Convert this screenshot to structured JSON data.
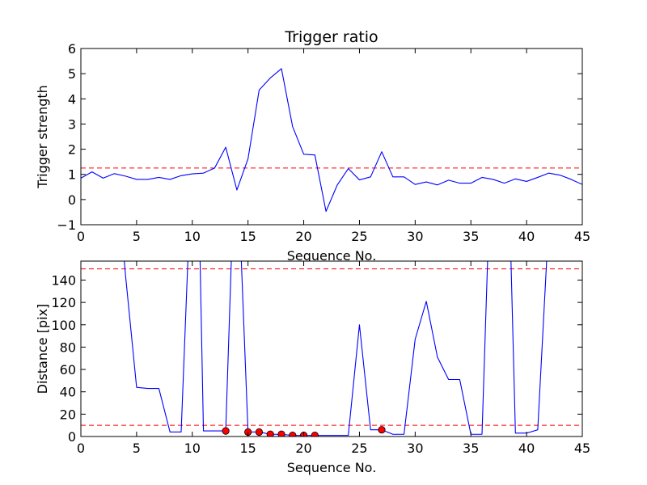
{
  "chart_data": [
    {
      "type": "line",
      "title": "Trigger ratio",
      "xlabel": "Sequence No.",
      "ylabel": "Trigger strength",
      "xlim": [
        0,
        45
      ],
      "ylim": [
        -1,
        6
      ],
      "xticks": [
        0,
        5,
        10,
        15,
        20,
        25,
        30,
        35,
        40,
        45
      ],
      "yticks": [
        -1,
        0,
        1,
        2,
        3,
        4,
        5,
        6
      ],
      "xtick_labels": [
        "0",
        "5",
        "10",
        "15",
        "20",
        "25",
        "30",
        "35",
        "40",
        "45"
      ],
      "ytick_labels": [
        "−1",
        "0",
        "1",
        "2",
        "3",
        "4",
        "5",
        "6"
      ],
      "grid": false,
      "series": [
        {
          "color": "#0000ff",
          "x": [
            0,
            1,
            2,
            3,
            4,
            5,
            6,
            7,
            8,
            9,
            10,
            11,
            12,
            13,
            14,
            15,
            16,
            17,
            18,
            19,
            20,
            21,
            22,
            23,
            24,
            25,
            26,
            27,
            28,
            29,
            30,
            31,
            32,
            33,
            34,
            35,
            36,
            37,
            38,
            39,
            40,
            41,
            42,
            43,
            44,
            45
          ],
          "values": [
            0.85,
            1.1,
            0.85,
            1.03,
            0.93,
            0.8,
            0.8,
            0.88,
            0.8,
            0.95,
            1.02,
            1.05,
            1.25,
            2.08,
            0.38,
            1.62,
            4.35,
            4.83,
            5.2,
            2.9,
            1.8,
            1.77,
            -0.47,
            0.57,
            1.23,
            0.78,
            0.9,
            1.9,
            0.9,
            0.9,
            0.6,
            0.7,
            0.58,
            0.77,
            0.65,
            0.65,
            0.88,
            0.8,
            0.65,
            0.82,
            0.72,
            0.88,
            1.05,
            0.97,
            0.8,
            0.6
          ]
        }
      ],
      "reference_lines": [
        {
          "y": 1.25,
          "color": "#ff0000",
          "style": "dashed"
        }
      ]
    },
    {
      "type": "line",
      "title": "",
      "xlabel": "Sequence No.",
      "ylabel": "Distance [pix]",
      "xlim": [
        0,
        45
      ],
      "ylim": [
        0,
        157
      ],
      "xticks": [
        0,
        5,
        10,
        15,
        20,
        25,
        30,
        35,
        40,
        45
      ],
      "yticks": [
        0,
        20,
        40,
        60,
        80,
        100,
        120,
        140
      ],
      "xtick_labels": [
        "0",
        "5",
        "10",
        "15",
        "20",
        "25",
        "30",
        "35",
        "40",
        "45"
      ],
      "ytick_labels": [
        "0",
        "20",
        "40",
        "60",
        "80",
        "100",
        "120",
        "140"
      ],
      "grid": false,
      "series": [
        {
          "color": "#0000ff",
          "x": [
            3.9,
            4,
            5,
            6,
            7,
            8,
            9,
            9.6,
            10.7,
            11,
            12,
            13,
            13.5,
            14.4,
            15,
            16,
            17,
            18,
            19,
            20,
            21,
            22,
            23,
            24,
            25,
            26,
            27,
            28,
            29,
            30,
            31,
            32,
            33,
            34,
            35,
            36,
            36.5,
            38.6,
            39,
            40,
            41,
            41.8
          ],
          "values": [
            157,
            145,
            44,
            43,
            43,
            4,
            4,
            157,
            157,
            5,
            5,
            5,
            157,
            157,
            4,
            4,
            2,
            2,
            1,
            1,
            1,
            1,
            1,
            1,
            100,
            6,
            6,
            2,
            2,
            87,
            121,
            71,
            51,
            51,
            2,
            2,
            157,
            157,
            3,
            3,
            6,
            157
          ]
        },
        {
          "color": "#ff0000",
          "marker": "circle",
          "x": [
            13,
            15,
            16,
            17,
            18,
            19,
            20,
            21,
            27
          ],
          "values": [
            5,
            4,
            4,
            2,
            2,
            1,
            1,
            1,
            6
          ]
        }
      ],
      "reference_lines": [
        {
          "y": 150,
          "color": "#ff0000",
          "style": "dashed"
        },
        {
          "y": 10,
          "color": "#ff0000",
          "style": "dashed"
        }
      ]
    }
  ]
}
